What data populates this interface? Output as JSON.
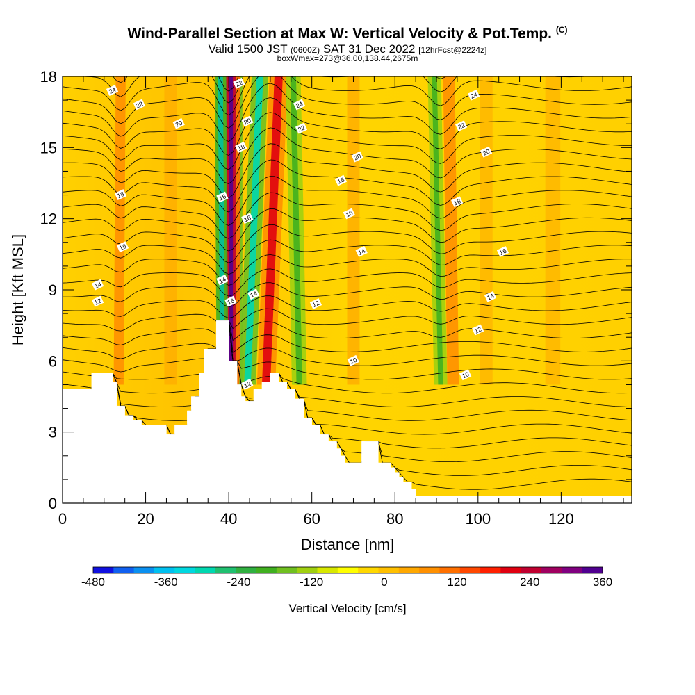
{
  "header": {
    "title": "Wind-Parallel Section at Max W: Vertical Velocity & Pot.Temp.",
    "copyright": "(C)",
    "valid_prefix": "Valid 1500 JST",
    "valid_utc": "(0600Z)",
    "valid_date": "SAT 31 Dec 2022",
    "forecast_info": "[12hrFcst@2224z]",
    "box_info": "boxWmax=273@36.00,138.44,2675m"
  },
  "chart_data": {
    "type": "heatmap",
    "xlabel": "Distance [nm]",
    "ylabel": "Height [Kft MSL]",
    "xlim": [
      0,
      137
    ],
    "ylim": [
      0,
      18
    ],
    "xticks": [
      0,
      20,
      40,
      60,
      80,
      100,
      120
    ],
    "yticks": [
      0,
      3,
      6,
      9,
      12,
      15,
      18
    ],
    "colorbar": {
      "label": "Vertical Velocity [cm/s]",
      "ticks": [
        -480,
        -360,
        -240,
        -120,
        0,
        120,
        240,
        360
      ],
      "colors": [
        "#1010e0",
        "#1060f0",
        "#0a90f0",
        "#00c0f0",
        "#00d8e0",
        "#00d8b0",
        "#20c070",
        "#30b040",
        "#40b020",
        "#70c020",
        "#a0d010",
        "#d8e800",
        "#ffff00",
        "#ffd800",
        "#ffc000",
        "#ffa800",
        "#ff9000",
        "#ff7000",
        "#ff4800",
        "#ff2000",
        "#e00010",
        "#c00030",
        "#a00060",
        "#800080",
        "#500090"
      ]
    },
    "terrain_kft": [
      [
        0,
        4.8
      ],
      [
        7,
        4.8
      ],
      [
        7,
        5.5
      ],
      [
        12,
        5.5
      ],
      [
        12,
        5.1
      ],
      [
        13,
        5.1
      ],
      [
        13,
        4.1
      ],
      [
        15,
        4.1
      ],
      [
        15,
        3.7
      ],
      [
        17,
        3.7
      ],
      [
        17,
        3.5
      ],
      [
        19,
        3.5
      ],
      [
        19,
        3.3
      ],
      [
        25,
        3.3
      ],
      [
        25,
        2.9
      ],
      [
        27,
        2.9
      ],
      [
        27,
        3.3
      ],
      [
        30,
        3.3
      ],
      [
        30,
        3.9
      ],
      [
        31,
        3.9
      ],
      [
        31,
        4.5
      ],
      [
        33,
        4.5
      ],
      [
        33,
        5.5
      ],
      [
        34,
        5.5
      ],
      [
        34,
        6.5
      ],
      [
        37,
        6.5
      ],
      [
        37,
        7.7
      ],
      [
        40,
        7.7
      ],
      [
        40,
        6.0
      ],
      [
        42,
        6.0
      ],
      [
        42,
        5.0
      ],
      [
        43,
        5.0
      ],
      [
        43,
        4.5
      ],
      [
        44,
        4.5
      ],
      [
        44,
        4.3
      ],
      [
        46,
        4.3
      ],
      [
        46,
        4.8
      ],
      [
        48,
        4.8
      ],
      [
        48,
        5.1
      ],
      [
        50,
        5.1
      ],
      [
        50,
        5.5
      ],
      [
        52,
        5.5
      ],
      [
        52,
        5.1
      ],
      [
        54,
        5.1
      ],
      [
        54,
        4.8
      ],
      [
        56,
        4.8
      ],
      [
        56,
        4.4
      ],
      [
        58,
        4.4
      ],
      [
        58,
        3.6
      ],
      [
        60,
        3.6
      ],
      [
        60,
        3.3
      ],
      [
        62,
        3.3
      ],
      [
        62,
        2.9
      ],
      [
        64,
        2.9
      ],
      [
        64,
        2.6
      ],
      [
        66,
        2.6
      ],
      [
        66,
        2.3
      ],
      [
        67,
        2.3
      ],
      [
        67,
        2.0
      ],
      [
        68,
        2.0
      ],
      [
        68,
        1.7
      ],
      [
        72,
        1.7
      ],
      [
        72,
        2.6
      ],
      [
        76,
        2.6
      ],
      [
        76,
        1.7
      ],
      [
        79,
        1.7
      ],
      [
        79,
        1.5
      ],
      [
        80,
        1.5
      ],
      [
        80,
        1.3
      ],
      [
        81,
        1.3
      ],
      [
        81,
        1.1
      ],
      [
        82,
        1.1
      ],
      [
        82,
        0.9
      ],
      [
        84,
        0.9
      ],
      [
        84,
        0.6
      ],
      [
        85,
        0.6
      ],
      [
        85,
        0.3
      ],
      [
        137,
        0.3
      ]
    ],
    "contour_labels": [
      {
        "text": "24",
        "x": 12,
        "y": 17.4
      },
      {
        "text": "22",
        "x": 18.5,
        "y": 16.8
      },
      {
        "text": "20",
        "x": 28,
        "y": 16.0
      },
      {
        "text": "18",
        "x": 14,
        "y": 13.0
      },
      {
        "text": "16",
        "x": 14.5,
        "y": 10.8
      },
      {
        "text": "14",
        "x": 8.5,
        "y": 9.2
      },
      {
        "text": "12",
        "x": 8.5,
        "y": 8.5
      },
      {
        "text": "22",
        "x": 42.5,
        "y": 17.7
      },
      {
        "text": "20",
        "x": 44.5,
        "y": 16.1
      },
      {
        "text": "18",
        "x": 43,
        "y": 15.0
      },
      {
        "text": "16",
        "x": 38.5,
        "y": 12.9
      },
      {
        "text": "16",
        "x": 44.5,
        "y": 12.0
      },
      {
        "text": "14",
        "x": 38.5,
        "y": 9.4
      },
      {
        "text": "16",
        "x": 40.5,
        "y": 8.5
      },
      {
        "text": "14",
        "x": 46,
        "y": 8.8
      },
      {
        "text": "12",
        "x": 44.5,
        "y": 5.0
      },
      {
        "text": "24",
        "x": 57,
        "y": 16.8
      },
      {
        "text": "22",
        "x": 57.5,
        "y": 15.8
      },
      {
        "text": "20",
        "x": 71,
        "y": 14.6
      },
      {
        "text": "18",
        "x": 67,
        "y": 13.6
      },
      {
        "text": "16",
        "x": 69,
        "y": 12.2
      },
      {
        "text": "14",
        "x": 72,
        "y": 10.6
      },
      {
        "text": "12",
        "x": 61,
        "y": 8.4
      },
      {
        "text": "10",
        "x": 70,
        "y": 6.0
      },
      {
        "text": "24",
        "x": 99,
        "y": 17.2
      },
      {
        "text": "22",
        "x": 96,
        "y": 15.9
      },
      {
        "text": "20",
        "x": 102,
        "y": 14.8
      },
      {
        "text": "18",
        "x": 95,
        "y": 12.7
      },
      {
        "text": "16",
        "x": 106,
        "y": 10.6
      },
      {
        "text": "14",
        "x": 103,
        "y": 8.7
      },
      {
        "text": "12",
        "x": 100,
        "y": 7.3
      },
      {
        "text": "10",
        "x": 97,
        "y": 5.4
      }
    ]
  }
}
